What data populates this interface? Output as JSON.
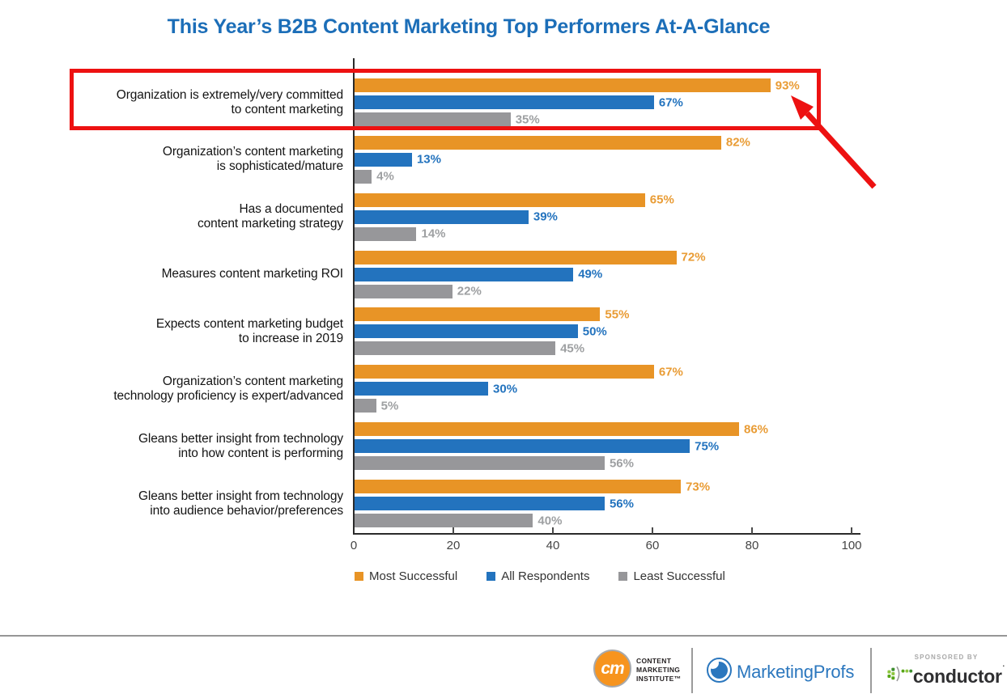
{
  "title": "This Year’s B2B Content Marketing Top Performers At-A-Glance",
  "chart_data": {
    "type": "bar",
    "orientation": "horizontal",
    "title": "This Year’s B2B Content Marketing Top Performers At-A-Glance",
    "categories": [
      "Organization is extremely/very committed to content marketing",
      "Organization’s content marketing is sophisticated/mature",
      "Has a documented content marketing strategy",
      "Measures content marketing ROI",
      "Expects content marketing budget to increase in 2019",
      "Organization’s content marketing technology proficiency is expert/advanced",
      "Gleans better insight from technology into how content is performing",
      "Gleans better insight from technology into audience behavior/preferences"
    ],
    "category_lines": [
      [
        "Organization is extremely/very committed",
        "to content marketing"
      ],
      [
        "Organization’s content marketing",
        "is sophisticated/mature"
      ],
      [
        "Has a documented",
        "content marketing strategy"
      ],
      [
        "Measures content marketing ROI"
      ],
      [
        "Expects content marketing budget",
        "to increase in 2019"
      ],
      [
        "Organization’s content marketing",
        "technology proficiency is expert/advanced"
      ],
      [
        "Gleans better insight from technology",
        "into how content is performing"
      ],
      [
        "Gleans better insight from technology",
        "into audience behavior/preferences"
      ]
    ],
    "series": [
      {
        "name": "Most Successful",
        "color": "#E89426",
        "value_color": "#E99C35",
        "values": [
          93,
          82,
          65,
          72,
          55,
          67,
          86,
          73
        ]
      },
      {
        "name": "All Respondents",
        "color": "#2373BE",
        "value_color": "#2373BE",
        "values": [
          67,
          13,
          39,
          49,
          50,
          30,
          75,
          56
        ]
      },
      {
        "name": "Least Successful",
        "color": "#97979A",
        "value_color": "#9EA0A2",
        "values": [
          35,
          4,
          14,
          22,
          45,
          5,
          56,
          40
        ]
      }
    ],
    "xlim": [
      0,
      100
    ],
    "x_ticks": [
      0,
      20,
      40,
      60,
      80,
      100
    ],
    "value_suffix": "%",
    "grid": false,
    "legend_position": "bottom",
    "bar_length_factor": 0.9,
    "annotation": {
      "highlighted_row": 0,
      "highlight_color": "#ED1111",
      "highlighted_values": "93% / 67% / 35%"
    }
  },
  "footer": {
    "cmi": {
      "circle_text": "cm",
      "lines": [
        "CONTENT",
        "MARKETING",
        "INSTITUTE™"
      ]
    },
    "marketingprofs": {
      "text": "MarketingProfs"
    },
    "sponsor": {
      "label": "SPONSORED BY",
      "name": "conductor",
      "trademark_dot": "·"
    }
  }
}
